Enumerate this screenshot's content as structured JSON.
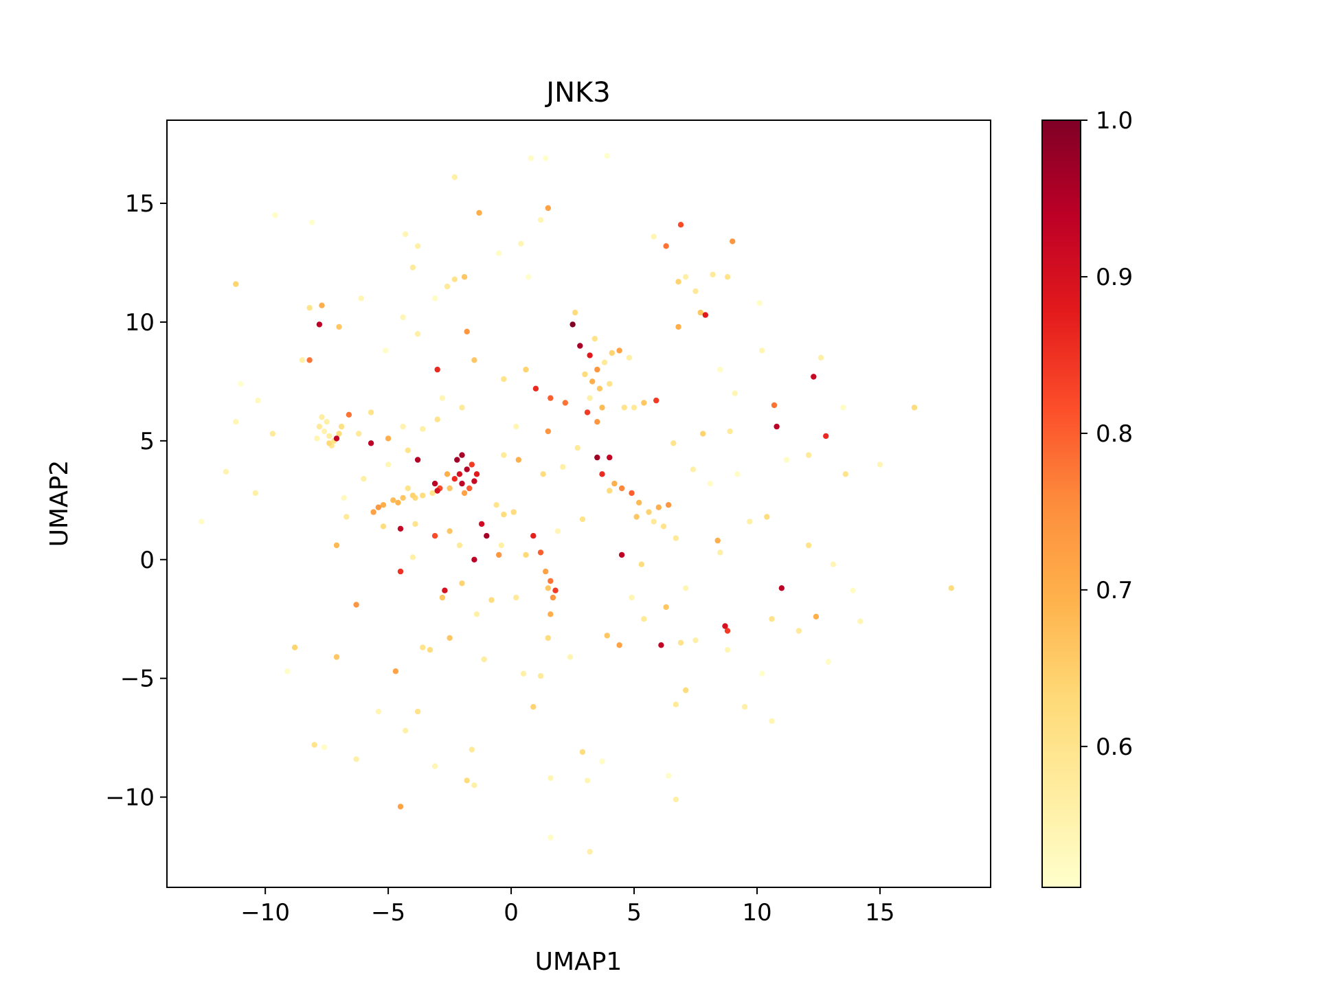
{
  "chart_data": {
    "type": "scatter",
    "title": "JNK3",
    "xlabel": "UMAP1",
    "ylabel": "UMAP2",
    "xlim": [
      -14.0,
      19.5
    ],
    "ylim": [
      -13.8,
      18.5
    ],
    "xticks": [
      {
        "value": -10,
        "label": "−10"
      },
      {
        "value": -5,
        "label": "−5"
      },
      {
        "value": 0,
        "label": "0"
      },
      {
        "value": 5,
        "label": "5"
      },
      {
        "value": 10,
        "label": "10"
      },
      {
        "value": 15,
        "label": "15"
      }
    ],
    "yticks": [
      {
        "value": -10,
        "label": "−10"
      },
      {
        "value": -5,
        "label": "−5"
      },
      {
        "value": 0,
        "label": "0"
      },
      {
        "value": 5,
        "label": "5"
      },
      {
        "value": 10,
        "label": "10"
      },
      {
        "value": 15,
        "label": "15"
      }
    ],
    "grid": false,
    "colorbar": {
      "colormap": "YlOrRd",
      "range": [
        0.51,
        1.0
      ],
      "ticks": [
        {
          "value": 0.6,
          "label": "0.6"
        },
        {
          "value": 0.7,
          "label": "0.7"
        },
        {
          "value": 0.8,
          "label": "0.8"
        },
        {
          "value": 0.9,
          "label": "0.9"
        },
        {
          "value": 1.0,
          "label": "1.0"
        }
      ],
      "stops": [
        "#ffffcc",
        "#ffeda0",
        "#fed976",
        "#feb24c",
        "#fd8d3c",
        "#fc4e2a",
        "#e31a1c",
        "#bd0026",
        "#800026"
      ]
    },
    "points": [
      [
        -7.6,
        5.4,
        0.55
      ],
      [
        -7.4,
        5.2,
        0.57
      ],
      [
        -7.8,
        5.6,
        0.58
      ],
      [
        -7.2,
        5.0,
        0.6
      ],
      [
        -7.5,
        5.8,
        0.56
      ],
      [
        -7.0,
        5.3,
        0.62
      ],
      [
        -7.9,
        5.1,
        0.54
      ],
      [
        -7.3,
        4.8,
        0.59
      ],
      [
        -6.9,
        5.6,
        0.61
      ],
      [
        -7.1,
        5.1,
        0.93
      ],
      [
        -6.6,
        6.1,
        0.78
      ],
      [
        -7.7,
        6.0,
        0.57
      ],
      [
        -7.4,
        4.9,
        0.63
      ],
      [
        -5.6,
        2.0,
        0.72
      ],
      [
        -5.2,
        2.3,
        0.7
      ],
      [
        -4.8,
        2.5,
        0.68
      ],
      [
        -4.4,
        2.6,
        0.66
      ],
      [
        -4.0,
        2.7,
        0.64
      ],
      [
        -3.6,
        2.7,
        0.62
      ],
      [
        -3.2,
        2.8,
        0.6
      ],
      [
        -5.4,
        2.2,
        0.74
      ],
      [
        -4.6,
        2.4,
        0.69
      ],
      [
        -3.9,
        2.6,
        0.63
      ],
      [
        -2.1,
        3.6,
        0.9
      ],
      [
        -2.0,
        3.2,
        0.93
      ],
      [
        -1.8,
        3.8,
        0.95
      ],
      [
        -2.3,
        3.4,
        0.86
      ],
      [
        -1.7,
        3.0,
        0.8
      ],
      [
        -1.5,
        3.3,
        0.92
      ],
      [
        -2.2,
        4.2,
        0.97
      ],
      [
        -1.9,
        2.8,
        0.72
      ],
      [
        -2.5,
        3.0,
        0.66
      ],
      [
        -1.4,
        3.6,
        0.88
      ],
      [
        -2.0,
        4.4,
        0.96
      ],
      [
        -1.6,
        4.0,
        0.84
      ],
      [
        -2.6,
        3.6,
        0.7
      ],
      [
        -3.1,
        3.2,
        0.94
      ],
      [
        -3.0,
        2.9,
        0.9
      ],
      [
        -3.8,
        4.2,
        0.95
      ],
      [
        -2.9,
        3.0,
        0.82
      ],
      [
        -4.2,
        3.0,
        0.6
      ],
      [
        -5.0,
        5.1,
        0.7
      ],
      [
        -5.7,
        4.9,
        0.94
      ],
      [
        -4.5,
        1.3,
        0.93
      ],
      [
        -3.1,
        1.0,
        0.82
      ],
      [
        -1.2,
        1.5,
        0.91
      ],
      [
        -1.0,
        1.0,
        0.96
      ],
      [
        -0.5,
        0.2,
        0.74
      ],
      [
        -1.5,
        0.0,
        0.94
      ],
      [
        -0.3,
        1.9,
        0.62
      ],
      [
        0.6,
        0.2,
        0.63
      ],
      [
        1.4,
        -0.5,
        0.72
      ],
      [
        1.6,
        -0.9,
        0.78
      ],
      [
        1.8,
        -1.3,
        0.84
      ],
      [
        1.7,
        -1.6,
        0.74
      ],
      [
        1.5,
        -1.2,
        0.66
      ],
      [
        0.9,
        1.0,
        0.87
      ],
      [
        1.2,
        0.3,
        0.8
      ],
      [
        1.6,
        -2.3,
        0.7
      ],
      [
        1.5,
        -3.3,
        0.62
      ],
      [
        -2.7,
        -1.3,
        0.9
      ],
      [
        -2.8,
        -1.6,
        0.66
      ],
      [
        -4.5,
        -0.5,
        0.85
      ],
      [
        -3.3,
        -3.8,
        0.62
      ],
      [
        -1.1,
        -4.2,
        0.57
      ],
      [
        2.5,
        9.9,
        1.0
      ],
      [
        2.8,
        9.0,
        0.96
      ],
      [
        3.2,
        8.6,
        0.88
      ],
      [
        3.5,
        8.0,
        0.74
      ],
      [
        3.3,
        7.5,
        0.7
      ],
      [
        3.6,
        7.2,
        0.66
      ],
      [
        3.0,
        7.8,
        0.62
      ],
      [
        3.8,
        8.3,
        0.58
      ],
      [
        4.1,
        8.7,
        0.64
      ],
      [
        4.4,
        8.8,
        0.72
      ],
      [
        4.0,
        7.4,
        0.6
      ],
      [
        3.2,
        6.8,
        0.56
      ],
      [
        3.7,
        6.4,
        0.68
      ],
      [
        2.6,
        10.4,
        0.62
      ],
      [
        3.4,
        9.3,
        0.6
      ],
      [
        2.2,
        6.6,
        0.78
      ],
      [
        3.1,
        6.2,
        0.84
      ],
      [
        3.5,
        5.8,
        0.74
      ],
      [
        4.6,
        6.4,
        0.6
      ],
      [
        5.0,
        6.4,
        0.58
      ],
      [
        5.4,
        6.6,
        0.66
      ],
      [
        5.9,
        6.7,
        0.84
      ],
      [
        4.8,
        8.5,
        0.56
      ],
      [
        3.5,
        4.3,
        0.97
      ],
      [
        4.0,
        4.3,
        0.93
      ],
      [
        4.2,
        3.2,
        0.7
      ],
      [
        4.5,
        3.0,
        0.76
      ],
      [
        4.9,
        2.8,
        0.8
      ],
      [
        5.2,
        2.4,
        0.68
      ],
      [
        4.0,
        2.9,
        0.62
      ],
      [
        5.6,
        2.0,
        0.64
      ],
      [
        6.0,
        2.2,
        0.7
      ],
      [
        6.4,
        2.3,
        0.74
      ],
      [
        5.8,
        1.6,
        0.58
      ],
      [
        4.5,
        0.2,
        0.94
      ],
      [
        6.2,
        1.4,
        0.6
      ],
      [
        5.1,
        1.8,
        0.66
      ],
      [
        3.7,
        3.6,
        0.86
      ],
      [
        1.5,
        5.4,
        0.74
      ],
      [
        1.0,
        7.2,
        0.86
      ],
      [
        1.6,
        6.8,
        0.8
      ],
      [
        0.3,
        4.2,
        0.7
      ],
      [
        -0.3,
        4.4,
        0.58
      ],
      [
        -3.0,
        8.0,
        0.86
      ],
      [
        -1.8,
        9.6,
        0.74
      ],
      [
        -2.3,
        11.8,
        0.6
      ],
      [
        -1.9,
        11.9,
        0.66
      ],
      [
        -2.6,
        11.5,
        0.58
      ],
      [
        -7.8,
        9.9,
        0.94
      ],
      [
        -8.2,
        8.4,
        0.78
      ],
      [
        -7.7,
        10.7,
        0.7
      ],
      [
        -8.2,
        10.6,
        0.6
      ],
      [
        -7.0,
        9.8,
        0.66
      ],
      [
        -6.2,
        5.3,
        0.58
      ],
      [
        -4.4,
        5.6,
        0.55
      ],
      [
        -6.0,
        3.4,
        0.56
      ],
      [
        -6.8,
        2.6,
        0.53
      ],
      [
        -10.4,
        2.8,
        0.56
      ],
      [
        -11.6,
        3.7,
        0.55
      ],
      [
        -12.6,
        1.6,
        0.52
      ],
      [
        -11.2,
        5.8,
        0.54
      ],
      [
        -9.7,
        5.3,
        0.58
      ],
      [
        -11.2,
        11.6,
        0.64
      ],
      [
        -9.6,
        14.5,
        0.52
      ],
      [
        -8.1,
        14.2,
        0.51
      ],
      [
        -4.3,
        13.7,
        0.54
      ],
      [
        -3.8,
        13.2,
        0.56
      ],
      [
        -2.3,
        16.1,
        0.56
      ],
      [
        -1.3,
        14.6,
        0.7
      ],
      [
        1.5,
        14.8,
        0.72
      ],
      [
        1.2,
        14.3,
        0.54
      ],
      [
        0.8,
        16.9,
        0.52
      ],
      [
        1.4,
        16.9,
        0.51
      ],
      [
        3.9,
        17.0,
        0.51
      ],
      [
        6.3,
        13.2,
        0.78
      ],
      [
        6.9,
        14.1,
        0.82
      ],
      [
        9.0,
        13.4,
        0.74
      ],
      [
        8.2,
        12.0,
        0.58
      ],
      [
        8.8,
        11.9,
        0.6
      ],
      [
        7.1,
        11.9,
        0.56
      ],
      [
        6.8,
        11.7,
        0.64
      ],
      [
        10.1,
        10.8,
        0.52
      ],
      [
        7.9,
        10.3,
        0.88
      ],
      [
        7.7,
        10.4,
        0.66
      ],
      [
        10.2,
        8.8,
        0.54
      ],
      [
        12.3,
        7.7,
        0.92
      ],
      [
        12.6,
        8.5,
        0.56
      ],
      [
        10.7,
        6.5,
        0.78
      ],
      [
        10.8,
        5.6,
        0.94
      ],
      [
        12.8,
        5.2,
        0.86
      ],
      [
        13.5,
        6.4,
        0.52
      ],
      [
        16.4,
        6.4,
        0.62
      ],
      [
        15.0,
        4.0,
        0.54
      ],
      [
        13.6,
        3.6,
        0.6
      ],
      [
        12.1,
        4.4,
        0.58
      ],
      [
        11.2,
        4.2,
        0.52
      ],
      [
        9.2,
        3.6,
        0.52
      ],
      [
        10.4,
        1.8,
        0.62
      ],
      [
        9.7,
        1.6,
        0.56
      ],
      [
        12.1,
        0.6,
        0.6
      ],
      [
        13.1,
        -0.2,
        0.54
      ],
      [
        11.0,
        -1.2,
        0.94
      ],
      [
        17.9,
        -1.2,
        0.62
      ],
      [
        13.9,
        -1.3,
        0.52
      ],
      [
        14.2,
        -2.6,
        0.54
      ],
      [
        12.4,
        -2.4,
        0.7
      ],
      [
        11.7,
        -3.0,
        0.58
      ],
      [
        10.6,
        -2.5,
        0.6
      ],
      [
        8.7,
        -2.8,
        0.9
      ],
      [
        8.8,
        -3.0,
        0.84
      ],
      [
        7.5,
        -3.4,
        0.56
      ],
      [
        6.9,
        -3.5,
        0.6
      ],
      [
        8.8,
        -3.8,
        0.54
      ],
      [
        12.9,
        -4.3,
        0.52
      ],
      [
        10.2,
        -4.8,
        0.51
      ],
      [
        9.5,
        -6.2,
        0.56
      ],
      [
        10.6,
        -6.8,
        0.54
      ],
      [
        7.1,
        -5.5,
        0.62
      ],
      [
        6.7,
        -6.1,
        0.58
      ],
      [
        6.7,
        -10.1,
        0.56
      ],
      [
        6.4,
        -9.1,
        0.52
      ],
      [
        3.1,
        -9.3,
        0.54
      ],
      [
        3.2,
        -12.3,
        0.56
      ],
      [
        1.6,
        -11.7,
        0.52
      ],
      [
        1.6,
        -9.2,
        0.54
      ],
      [
        2.9,
        -8.1,
        0.62
      ],
      [
        3.7,
        -8.5,
        0.52
      ],
      [
        0.9,
        -6.2,
        0.64
      ],
      [
        0.5,
        -4.8,
        0.56
      ],
      [
        1.2,
        -4.9,
        0.58
      ],
      [
        2.4,
        -4.1,
        0.54
      ],
      [
        4.4,
        -3.6,
        0.72
      ],
      [
        3.9,
        -3.2,
        0.66
      ],
      [
        6.1,
        -3.6,
        0.93
      ],
      [
        5.4,
        -2.5,
        0.58
      ],
      [
        6.3,
        -2.0,
        0.66
      ],
      [
        4.9,
        -1.6,
        0.54
      ],
      [
        -1.5,
        -9.5,
        0.56
      ],
      [
        -1.8,
        -9.3,
        0.62
      ],
      [
        -1.6,
        -8.0,
        0.58
      ],
      [
        -4.5,
        -10.4,
        0.72
      ],
      [
        -3.1,
        -8.7,
        0.54
      ],
      [
        -4.3,
        -7.2,
        0.56
      ],
      [
        -3.8,
        -6.4,
        0.6
      ],
      [
        -5.4,
        -6.4,
        0.54
      ],
      [
        -6.3,
        -8.4,
        0.56
      ],
      [
        -7.6,
        -7.9,
        0.52
      ],
      [
        -8.0,
        -7.8,
        0.6
      ],
      [
        -8.8,
        -3.7,
        0.64
      ],
      [
        -9.1,
        -4.7,
        0.52
      ],
      [
        -7.1,
        -4.1,
        0.66
      ],
      [
        -6.3,
        -1.9,
        0.74
      ],
      [
        -7.1,
        0.6,
        0.68
      ],
      [
        -6.7,
        1.8,
        0.58
      ],
      [
        -4.7,
        -4.7,
        0.72
      ],
      [
        -3.6,
        -3.7,
        0.6
      ],
      [
        -2.5,
        -3.3,
        0.66
      ],
      [
        -5.7,
        6.2,
        0.6
      ],
      [
        -8.5,
        8.4,
        0.56
      ],
      [
        -11.0,
        7.4,
        0.51
      ],
      [
        -10.3,
        6.7,
        0.53
      ],
      [
        -6.1,
        11.0,
        0.54
      ],
      [
        -5.1,
        8.8,
        0.52
      ],
      [
        -3.8,
        9.5,
        0.56
      ],
      [
        -4.4,
        10.2,
        0.54
      ],
      [
        0.4,
        13.3,
        0.54
      ],
      [
        -0.5,
        12.9,
        0.52
      ],
      [
        -4.0,
        12.3,
        0.58
      ],
      [
        -3.1,
        11.0,
        0.52
      ],
      [
        0.7,
        11.9,
        0.51
      ],
      [
        5.8,
        13.6,
        0.54
      ],
      [
        7.5,
        11.3,
        0.58
      ],
      [
        6.8,
        9.8,
        0.7
      ],
      [
        8.5,
        8.0,
        0.52
      ],
      [
        9.1,
        7.0,
        0.54
      ],
      [
        7.8,
        5.3,
        0.64
      ],
      [
        8.9,
        5.4,
        0.58
      ],
      [
        6.6,
        4.9,
        0.6
      ],
      [
        7.4,
        3.8,
        0.56
      ],
      [
        8.1,
        3.2,
        0.52
      ],
      [
        8.4,
        0.8,
        0.7
      ],
      [
        8.5,
        0.3,
        0.56
      ],
      [
        6.7,
        0.9,
        0.58
      ],
      [
        7.1,
        -1.2,
        0.54
      ],
      [
        5.3,
        -0.2,
        0.62
      ],
      [
        2.9,
        1.7,
        0.6
      ],
      [
        1.9,
        1.2,
        0.54
      ],
      [
        -0.4,
        0.6,
        0.56
      ],
      [
        0.2,
        -1.6,
        0.58
      ],
      [
        -0.8,
        -1.7,
        0.62
      ],
      [
        -2.0,
        -1.0,
        0.64
      ],
      [
        -1.4,
        -2.3,
        0.56
      ],
      [
        -5.2,
        1.4,
        0.62
      ],
      [
        -3.9,
        1.5,
        0.6
      ],
      [
        -2.5,
        1.2,
        0.66
      ],
      [
        -2.1,
        0.6,
        0.58
      ],
      [
        -4.0,
        0.1,
        0.56
      ],
      [
        -0.6,
        2.3,
        0.6
      ],
      [
        0.1,
        2.0,
        0.62
      ],
      [
        2.1,
        3.9,
        0.56
      ],
      [
        1.3,
        3.6,
        0.62
      ],
      [
        2.7,
        4.7,
        0.58
      ],
      [
        -1.5,
        8.4,
        0.66
      ],
      [
        -0.3,
        7.6,
        0.6
      ],
      [
        0.6,
        8.0,
        0.64
      ],
      [
        -2.8,
        6.8,
        0.54
      ],
      [
        -2.0,
        6.4,
        0.58
      ],
      [
        -3.6,
        5.5,
        0.56
      ],
      [
        -4.2,
        4.6,
        0.6
      ],
      [
        -5.0,
        4.0,
        0.54
      ],
      [
        -3.0,
        5.9,
        0.6
      ],
      [
        0.2,
        5.6,
        0.54
      ]
    ]
  }
}
